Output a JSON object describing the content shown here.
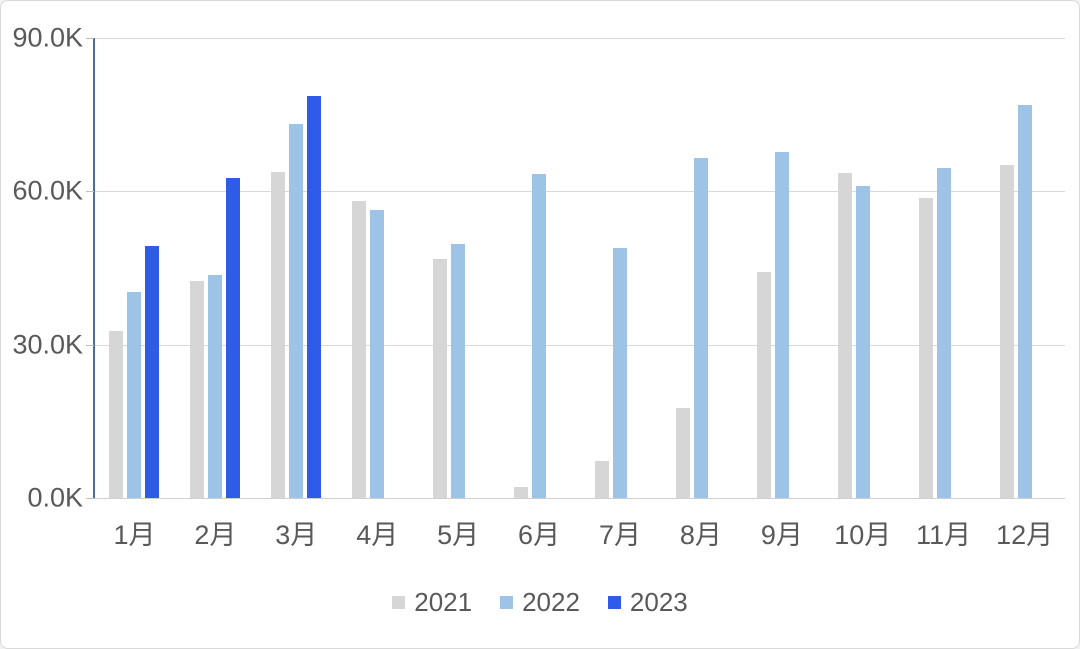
{
  "canvas": {
    "background": "#ffffff",
    "border_color": "#d9d9d9"
  },
  "chart_data": {
    "type": "bar",
    "title": "",
    "xlabel": "",
    "ylabel": "",
    "categories": [
      "1月",
      "2月",
      "3月",
      "4月",
      "5月",
      "6月",
      "7月",
      "8月",
      "9月",
      "10月",
      "11月",
      "12月"
    ],
    "series": [
      {
        "name": "2021",
        "color": "#d6d6d6",
        "values": [
          32.6,
          42.5,
          63.7,
          58.2,
          46.8,
          2.2,
          7.3,
          17.6,
          44.2,
          63.5,
          58.7,
          65.2
        ]
      },
      {
        "name": "2022",
        "color": "#9dc3e6",
        "values": [
          40.4,
          43.6,
          73.1,
          56.3,
          49.7,
          63.3,
          49.0,
          66.5,
          67.7,
          61.0,
          64.5,
          76.8
        ]
      },
      {
        "name": "2023",
        "color": "#2e5ce6",
        "values": [
          49.3,
          62.6,
          78.7,
          null,
          null,
          null,
          null,
          null,
          null,
          null,
          null,
          null
        ]
      }
    ],
    "unit": "K",
    "ylim": [
      0,
      90
    ],
    "y_tick_interval": 30,
    "y_tick_labels": [
      "0.0K",
      "30.0K",
      "60.0K",
      "90.0K"
    ],
    "grid": true,
    "legend_position": "bottom",
    "axis_line_color": "#44709d",
    "gridline_color": "#d9d9d9",
    "label_color": "#595959"
  }
}
